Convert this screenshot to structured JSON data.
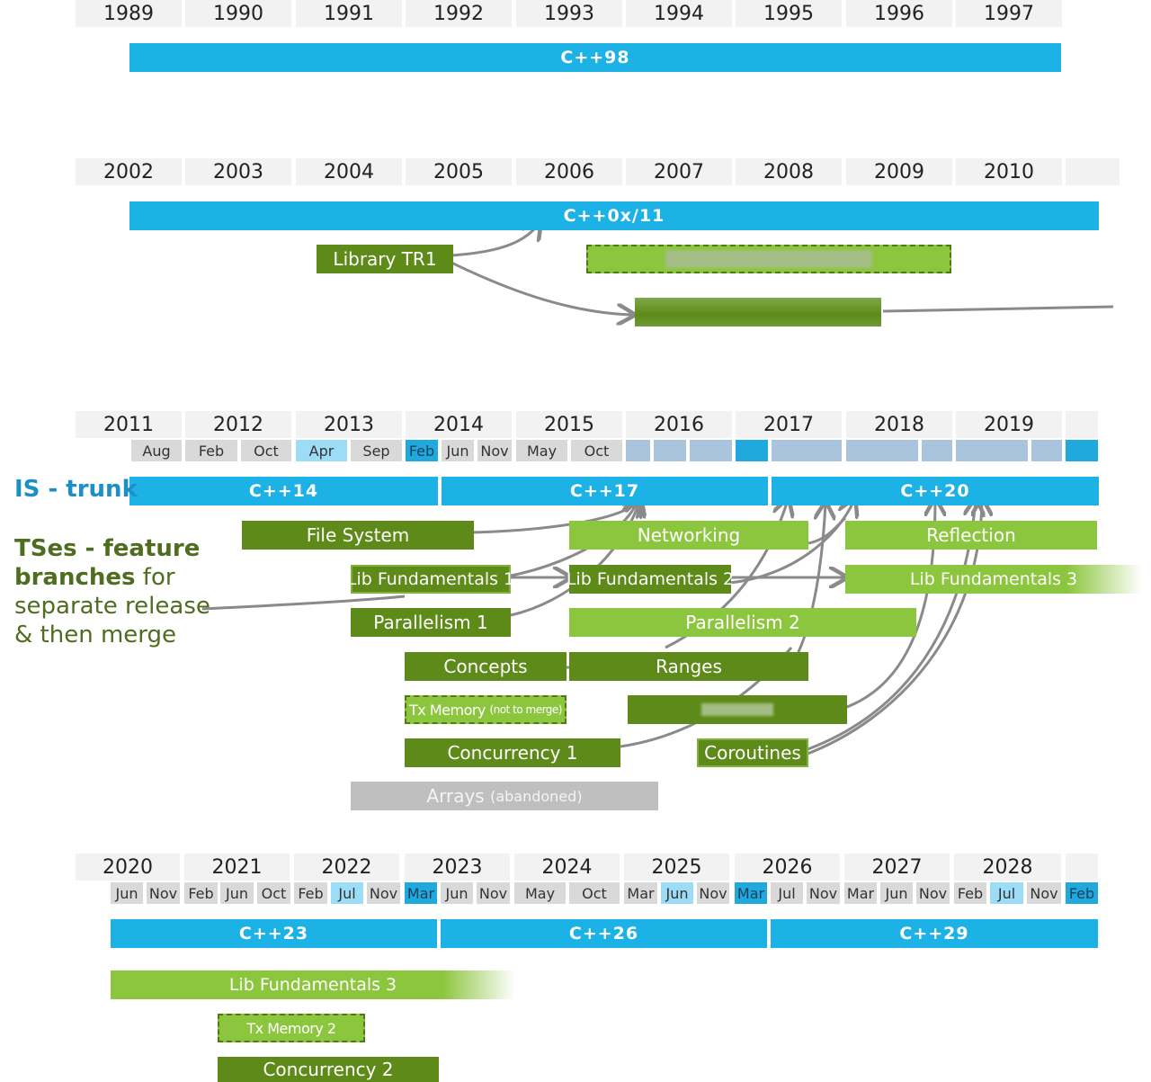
{
  "row1": {
    "years": [
      "1989",
      "1990",
      "1991",
      "1992",
      "1993",
      "1994",
      "1995",
      "1996",
      "1997"
    ],
    "standard": "C++98"
  },
  "row2": {
    "years": [
      "2002",
      "2003",
      "2004",
      "2005",
      "2006",
      "2007",
      "2008",
      "2009",
      "2010"
    ],
    "standard": "C++0x/11",
    "branches": {
      "library_tr1": "Library TR1"
    }
  },
  "row3": {
    "years": [
      "2011",
      "2012",
      "2013",
      "2014",
      "2015",
      "2016",
      "2017",
      "2018",
      "2019"
    ],
    "months": [
      "Aug",
      "Feb",
      "Oct",
      "Apr",
      "Sep",
      "Feb",
      "Jun",
      "Nov",
      "May",
      "Oct"
    ],
    "standards": [
      "C++14",
      "C++17",
      "C++20"
    ],
    "branches": {
      "file_system": "File System",
      "networking": "Networking",
      "reflection": "Reflection",
      "lib_fundamentals_1": "Lib Fundamentals 1",
      "lib_fundamentals_2": "Lib Fundamentals 2",
      "lib_fundamentals_3": "Lib Fundamentals 3",
      "parallelism_1": "Parallelism 1",
      "parallelism_2": "Parallelism 2",
      "concepts": "Concepts",
      "ranges": "Ranges",
      "tx_memory": "Tx Memory",
      "tx_memory_note": "(not to merge)",
      "concurrency_1": "Concurrency 1",
      "coroutines": "Coroutines",
      "arrays": "Arrays",
      "arrays_note": "(abandoned)"
    }
  },
  "row4": {
    "years": [
      "2020",
      "2021",
      "2022",
      "2023",
      "2024",
      "2025",
      "2026",
      "2027",
      "2028"
    ],
    "months": [
      "Jun",
      "Nov",
      "Feb",
      "Jun",
      "Oct",
      "Feb",
      "Jul",
      "Nov",
      "Mar",
      "Jun",
      "Nov",
      "May",
      "Oct",
      "Mar",
      "Jun",
      "Nov",
      "Mar",
      "Jul",
      "Nov",
      "Mar",
      "Jun",
      "Nov",
      "Feb",
      "Jul",
      "Nov",
      "Feb"
    ],
    "standards": [
      "C++23",
      "C++26",
      "C++29"
    ],
    "branches": {
      "lib_fundamentals_3": "Lib Fundamentals 3",
      "tx_memory_2": "Tx Memory 2",
      "concurrency_2": "Concurrency 2"
    }
  },
  "sidebar": {
    "is_label": "IS - trunk",
    "ts_bold": "TSes - feature branches",
    "ts_rest_1": " for",
    "ts_line_2": "separate release",
    "ts_line_3": "& then merge"
  },
  "colors": {
    "trunk": "#1cb2e6",
    "branch_dark": "#5d8a18",
    "branch_light": "#8cc63e",
    "abandoned": "#bfbfbf",
    "sidebar_trunk_text": "#1c8fc4",
    "sidebar_branch_text": "#4f6d1e"
  }
}
